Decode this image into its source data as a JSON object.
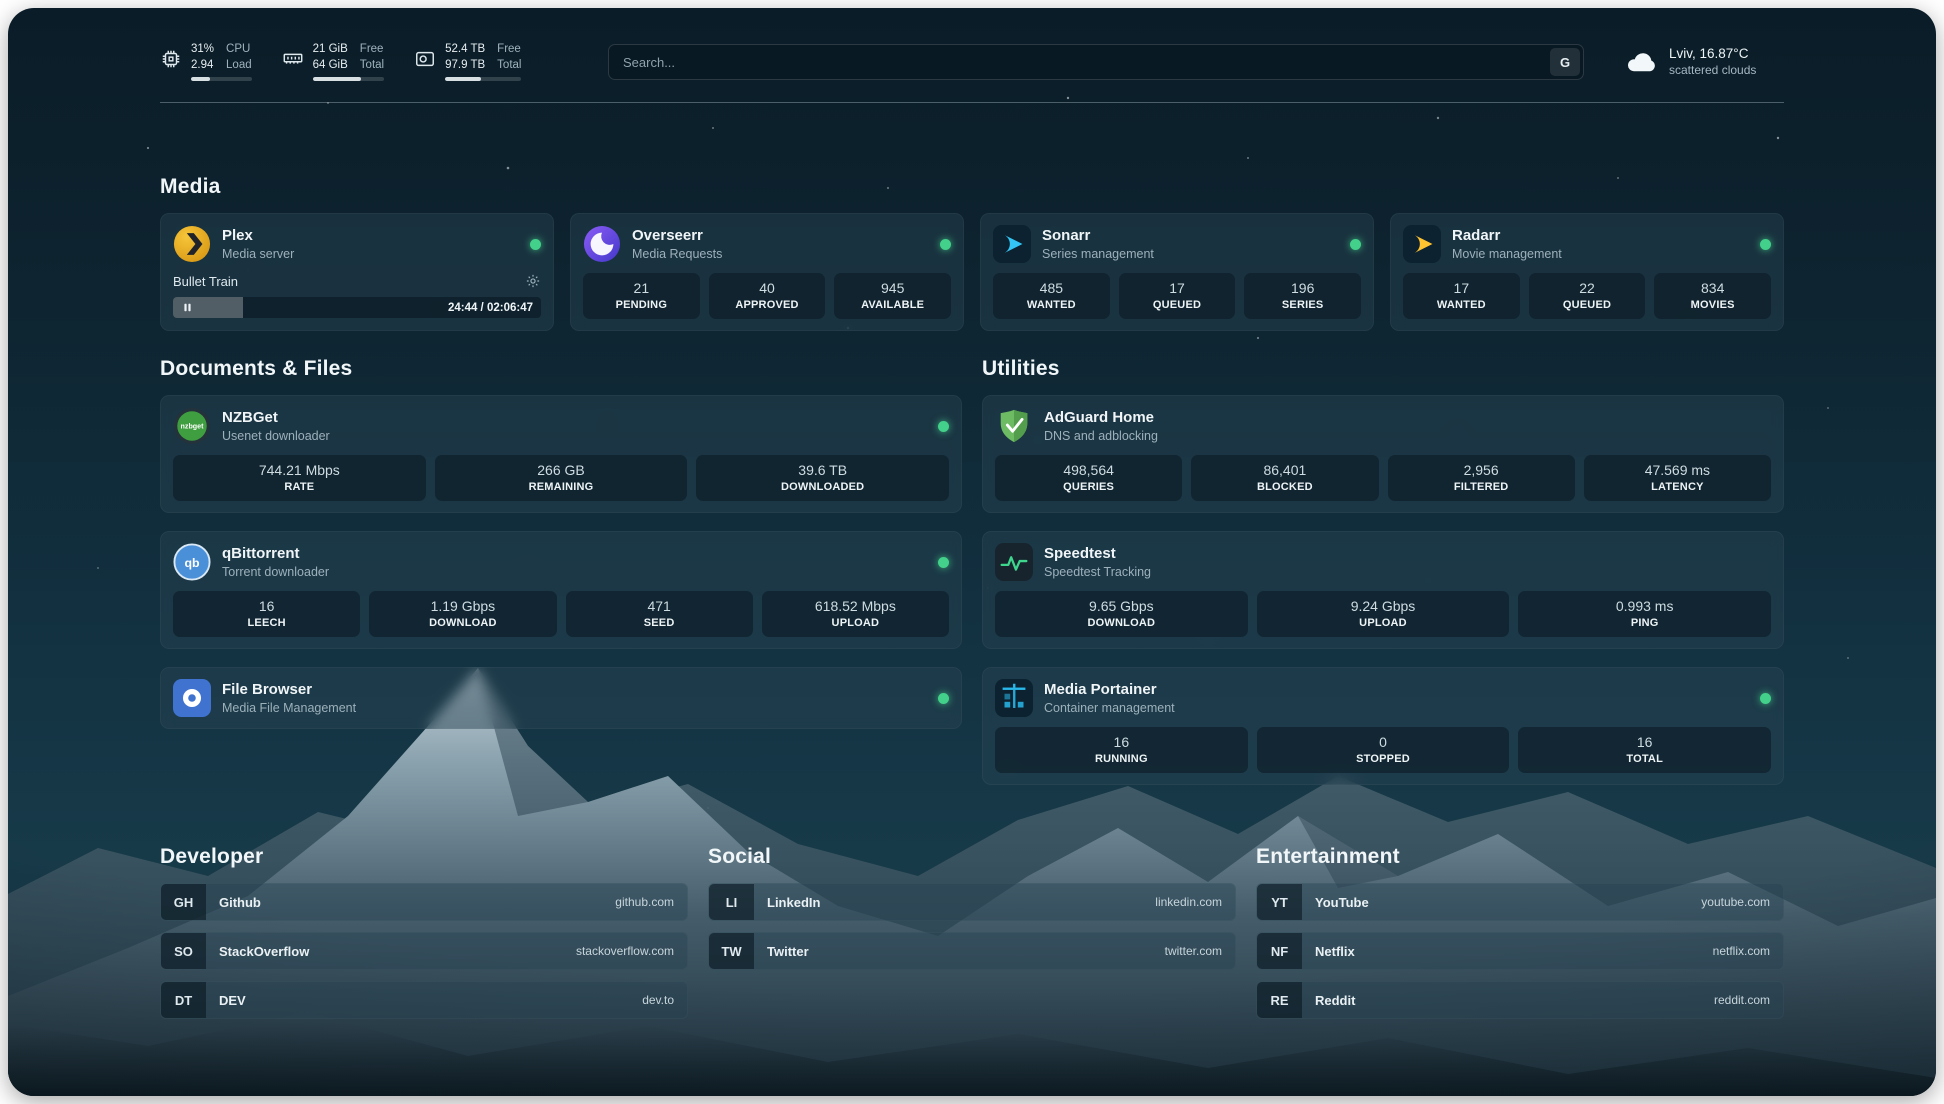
{
  "topbar": {
    "resources": [
      {
        "name": "cpu",
        "value": "31%",
        "sub": "2.94",
        "label_top": "CPU",
        "label_bottom": "Load",
        "percent": 31
      },
      {
        "name": "memory",
        "value": "21 GiB",
        "sub": "64 GiB",
        "label_top": "Free",
        "label_bottom": "Total",
        "percent": 67
      },
      {
        "name": "disk",
        "value": "52.4 TB",
        "sub": "97.9 TB",
        "label_top": "Free",
        "label_bottom": "Total",
        "percent": 47
      }
    ],
    "search": {
      "placeholder": "Search...",
      "provider_label": "G"
    },
    "weather": {
      "location": "Lviv, 16.87°C",
      "condition": "scattered clouds"
    }
  },
  "sections": {
    "media": "Media",
    "documents": "Documents & Files",
    "utilities": "Utilities"
  },
  "services": {
    "plex": {
      "name": "Plex",
      "desc": "Media server",
      "now_playing": "Bullet Train",
      "time": "24:44 / 02:06:47",
      "progress_percent": 19
    },
    "overseerr": {
      "name": "Overseerr",
      "desc": "Media Requests",
      "stats": [
        {
          "value": "21",
          "label": "PENDING"
        },
        {
          "value": "40",
          "label": "APPROVED"
        },
        {
          "value": "945",
          "label": "AVAILABLE"
        }
      ]
    },
    "sonarr": {
      "name": "Sonarr",
      "desc": "Series management",
      "stats": [
        {
          "value": "485",
          "label": "WANTED"
        },
        {
          "value": "17",
          "label": "QUEUED"
        },
        {
          "value": "196",
          "label": "SERIES"
        }
      ]
    },
    "radarr": {
      "name": "Radarr",
      "desc": "Movie management",
      "stats": [
        {
          "value": "17",
          "label": "WANTED"
        },
        {
          "value": "22",
          "label": "QUEUED"
        },
        {
          "value": "834",
          "label": "MOVIES"
        }
      ]
    },
    "nzbget": {
      "name": "NZBGet",
      "desc": "Usenet downloader",
      "icon_text": "nzbget",
      "stats": [
        {
          "value": "744.21 Mbps",
          "label": "RATE"
        },
        {
          "value": "266 GB",
          "label": "REMAINING"
        },
        {
          "value": "39.6 TB",
          "label": "DOWNLOADED"
        }
      ]
    },
    "qbittorrent": {
      "name": "qBittorrent",
      "desc": "Torrent downloader",
      "icon_text": "qb",
      "stats": [
        {
          "value": "16",
          "label": "LEECH"
        },
        {
          "value": "1.19 Gbps",
          "label": "DOWNLOAD"
        },
        {
          "value": "471",
          "label": "SEED"
        },
        {
          "value": "618.52 Mbps",
          "label": "UPLOAD"
        }
      ]
    },
    "filebrowser": {
      "name": "File Browser",
      "desc": "Media File Management"
    },
    "adguard": {
      "name": "AdGuard Home",
      "desc": "DNS and adblocking",
      "stats": [
        {
          "value": "498,564",
          "label": "QUERIES"
        },
        {
          "value": "86,401",
          "label": "BLOCKED"
        },
        {
          "value": "2,956",
          "label": "FILTERED"
        },
        {
          "value": "47.569 ms",
          "label": "LATENCY"
        }
      ]
    },
    "speedtest": {
      "name": "Speedtest",
      "desc": "Speedtest Tracking",
      "stats": [
        {
          "value": "9.65 Gbps",
          "label": "DOWNLOAD"
        },
        {
          "value": "9.24 Gbps",
          "label": "UPLOAD"
        },
        {
          "value": "0.993 ms",
          "label": "PING"
        }
      ]
    },
    "portainer": {
      "name": "Media Portainer",
      "desc": "Container management",
      "stats": [
        {
          "value": "16",
          "label": "RUNNING"
        },
        {
          "value": "0",
          "label": "STOPPED"
        },
        {
          "value": "16",
          "label": "TOTAL"
        }
      ]
    }
  },
  "bookmarks": {
    "developer": {
      "title": "Developer",
      "items": [
        {
          "abbr": "GH",
          "name": "Github",
          "domain": "github.com"
        },
        {
          "abbr": "SO",
          "name": "StackOverflow",
          "domain": "stackoverflow.com"
        },
        {
          "abbr": "DT",
          "name": "DEV",
          "domain": "dev.to"
        }
      ]
    },
    "social": {
      "title": "Social",
      "items": [
        {
          "abbr": "LI",
          "name": "LinkedIn",
          "domain": "linkedin.com"
        },
        {
          "abbr": "TW",
          "name": "Twitter",
          "domain": "twitter.com"
        }
      ]
    },
    "entertainment": {
      "title": "Entertainment",
      "items": [
        {
          "abbr": "YT",
          "name": "YouTube",
          "domain": "youtube.com"
        },
        {
          "abbr": "NF",
          "name": "Netflix",
          "domain": "netflix.com"
        },
        {
          "abbr": "RE",
          "name": "Reddit",
          "domain": "reddit.com"
        }
      ]
    }
  },
  "colors": {
    "status_online": "#43d08a",
    "accent_plex": "#e5a00d",
    "accent_sonarr": "#35c5f4",
    "accent_radarr": "#ffc230",
    "accent_adguard": "#63a84f",
    "accent_overseerr": "#5b5bd6"
  }
}
